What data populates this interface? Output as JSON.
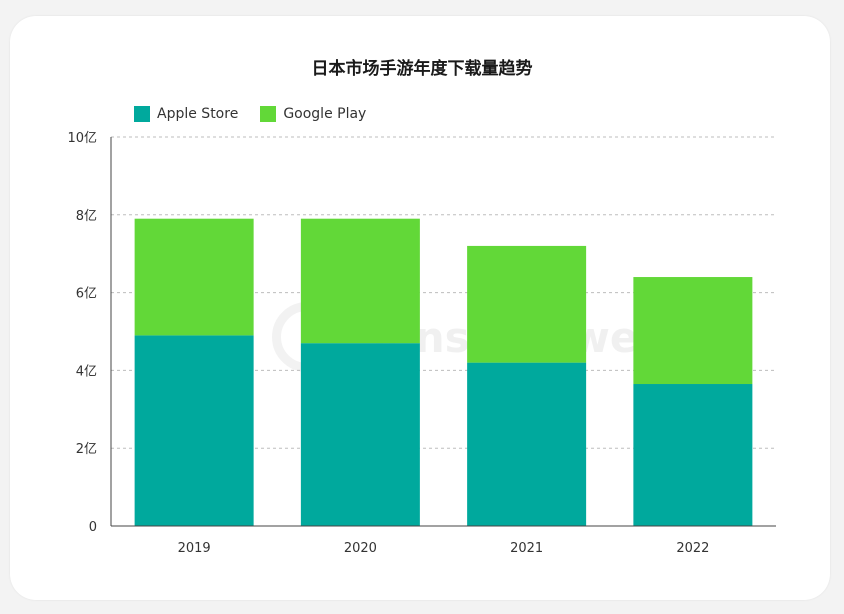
{
  "chart_data": {
    "type": "bar",
    "stacked": true,
    "title": "日本市场手游年度下载量趋势",
    "categories": [
      "2019",
      "2020",
      "2021",
      "2022"
    ],
    "series": [
      {
        "name": "Apple Store",
        "color": "#00a99d",
        "values": [
          4.9,
          4.7,
          4.2,
          3.65
        ]
      },
      {
        "name": "Google Play",
        "color": "#62d838",
        "values": [
          3.0,
          3.2,
          3.0,
          2.75
        ]
      }
    ],
    "ylim": [
      0,
      10
    ],
    "yticks": [
      "0",
      "2亿",
      "4亿",
      "6亿",
      "8亿",
      "10亿"
    ],
    "ytick_values": [
      0,
      2,
      4,
      6,
      8,
      10
    ],
    "grid": true,
    "legend_position": "top-left"
  },
  "watermark": {
    "text": "SensorTower"
  }
}
